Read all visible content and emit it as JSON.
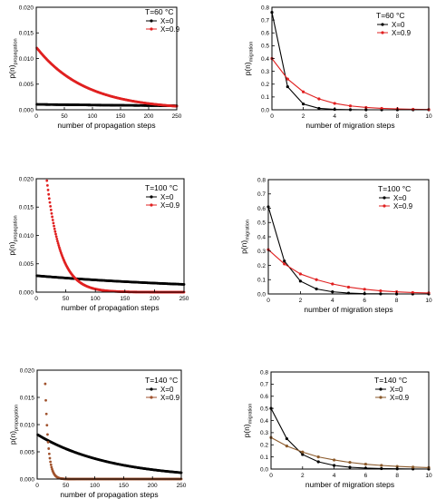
{
  "chart_data": [
    {
      "type": "scatter",
      "title": "",
      "xlabel": "number of propagation steps",
      "ylabel_main": "p(n)",
      "ylabel_sub": "propagation",
      "xlim": [
        0,
        250
      ],
      "ylim": [
        0,
        0.02
      ],
      "xticks": [
        "0",
        "50",
        "100",
        "150",
        "200",
        "250"
      ],
      "yticks": [
        "0.000",
        "0.005",
        "0.010",
        "0.015",
        "0.020"
      ],
      "legend_title": "T=60 °C",
      "legend_position": "top-right",
      "series": [
        {
          "name": "X=0",
          "color": "#000000",
          "model": {
            "kind": "exp",
            "a": 0.00105,
            "k": 0.0012,
            "xmin": 1,
            "xmax": 250
          }
        },
        {
          "name": "X=0.9",
          "color": "#e02020",
          "model": {
            "kind": "exp",
            "a": 0.0122,
            "k": 0.0115,
            "xmin": 1,
            "xmax": 250
          }
        }
      ]
    },
    {
      "type": "line",
      "title": "",
      "xlabel": "number of migration steps",
      "ylabel_main": "p(n)",
      "ylabel_sub": "migration",
      "xlim": [
        0,
        10
      ],
      "ylim": [
        0,
        0.8
      ],
      "xticks": [
        "0",
        "2",
        "4",
        "6",
        "8",
        "10"
      ],
      "yticks": [
        "0.0",
        "0.1",
        "0.2",
        "0.3",
        "0.4",
        "0.5",
        "0.6",
        "0.7",
        "0.8"
      ],
      "legend_title": "T=60 °C",
      "legend_position": "top-right",
      "series": [
        {
          "name": "X=0",
          "color": "#000000",
          "x": [
            0,
            1,
            2,
            3,
            4,
            5,
            6,
            7,
            8,
            9,
            10
          ],
          "values": [
            0.76,
            0.18,
            0.045,
            0.011,
            0.003,
            0.001,
            0,
            0,
            0,
            0,
            0
          ]
        },
        {
          "name": "X=0.9",
          "color": "#e02020",
          "x": [
            0,
            1,
            2,
            3,
            4,
            5,
            6,
            7,
            8,
            9,
            10
          ],
          "values": [
            0.4,
            0.24,
            0.14,
            0.085,
            0.05,
            0.03,
            0.018,
            0.011,
            0.007,
            0.004,
            0.002
          ]
        }
      ]
    },
    {
      "type": "scatter",
      "title": "",
      "xlabel": "number of propagation steps",
      "ylabel_main": "p(n)",
      "ylabel_sub": "propagation",
      "xlim": [
        0,
        250
      ],
      "ylim": [
        0,
        0.02
      ],
      "xticks": [
        "0",
        "50",
        "100",
        "150",
        "200",
        "250"
      ],
      "yticks": [
        "0.000",
        "0.005",
        "0.010",
        "0.015",
        "0.020"
      ],
      "legend_title": "T=100 °C",
      "legend_position": "top-right",
      "series": [
        {
          "name": "X=0",
          "color": "#000000",
          "model": {
            "kind": "exp",
            "a": 0.0029,
            "k": 0.003,
            "xmin": 1,
            "xmax": 250
          }
        },
        {
          "name": "X=0.9",
          "color": "#e02020",
          "model": {
            "kind": "exp",
            "a": 0.043,
            "k": 0.0435,
            "xmin": 18,
            "xmax": 250
          }
        }
      ]
    },
    {
      "type": "line",
      "title": "",
      "xlabel": "number of migration steps",
      "ylabel_main": "p(n)",
      "ylabel_sub": "migration",
      "xlim": [
        0,
        10
      ],
      "ylim": [
        0,
        0.8
      ],
      "xticks": [
        "0",
        "2",
        "4",
        "6",
        "8",
        "10"
      ],
      "yticks": [
        "0.0",
        "0.1",
        "0.2",
        "0.3",
        "0.4",
        "0.5",
        "0.6",
        "0.7",
        "0.8"
      ],
      "legend_title": "T=100 °C",
      "legend_position": "top-right",
      "series": [
        {
          "name": "X=0",
          "color": "#000000",
          "x": [
            0,
            1,
            2,
            3,
            4,
            5,
            6,
            7,
            8,
            9,
            10
          ],
          "values": [
            0.61,
            0.23,
            0.09,
            0.035,
            0.015,
            0.006,
            0.002,
            0.001,
            0,
            0,
            0
          ]
        },
        {
          "name": "X=0.9",
          "color": "#e02020",
          "x": [
            0,
            1,
            2,
            3,
            4,
            5,
            6,
            7,
            8,
            9,
            10
          ],
          "values": [
            0.31,
            0.21,
            0.14,
            0.1,
            0.07,
            0.048,
            0.033,
            0.022,
            0.015,
            0.01,
            0.007
          ]
        }
      ]
    },
    {
      "type": "scatter",
      "title": "",
      "xlabel": "number of propagation steps",
      "ylabel_main": "p(n)",
      "ylabel_sub": "propagation",
      "xlim": [
        0,
        250
      ],
      "ylim": [
        0,
        0.02
      ],
      "xticks": [
        "0",
        "50",
        "100",
        "150",
        "200",
        "250"
      ],
      "yticks": [
        "0.000",
        "0.005",
        "0.010",
        "0.015",
        "0.020"
      ],
      "legend_title": "T=140 °C",
      "legend_position": "top-right",
      "series": [
        {
          "name": "X=0",
          "color": "#000000",
          "model": {
            "kind": "exp",
            "a": 0.0082,
            "k": 0.0078,
            "xmin": 1,
            "xmax": 250
          }
        },
        {
          "name": "X=0.9",
          "color": "#a0522d",
          "model": {
            "kind": "exp",
            "a": 0.25,
            "k": 0.19,
            "xmin": 14,
            "xmax": 250
          }
        }
      ]
    },
    {
      "type": "line",
      "title": "",
      "xlabel": "number of migration steps",
      "ylabel_main": "p(n)",
      "ylabel_sub": "migration",
      "xlim": [
        0,
        10
      ],
      "ylim": [
        0,
        0.8
      ],
      "xticks": [
        "0",
        "2",
        "4",
        "6",
        "8",
        "10"
      ],
      "yticks": [
        "0.0",
        "0.1",
        "0.2",
        "0.3",
        "0.4",
        "0.5",
        "0.6",
        "0.7",
        "0.8"
      ],
      "legend_title": "T=140 °C",
      "legend_position": "top-right",
      "series": [
        {
          "name": "X=0",
          "color": "#000000",
          "x": [
            0,
            1,
            2,
            3,
            4,
            5,
            6,
            7,
            8,
            9,
            10
          ],
          "values": [
            0.5,
            0.25,
            0.12,
            0.06,
            0.03,
            0.015,
            0.008,
            0.004,
            0.002,
            0.001,
            0
          ]
        },
        {
          "name": "X=0.9",
          "color": "#8b5a2b",
          "x": [
            0,
            1,
            2,
            3,
            4,
            5,
            6,
            7,
            8,
            9,
            10
          ],
          "values": [
            0.26,
            0.19,
            0.14,
            0.1,
            0.075,
            0.055,
            0.04,
            0.03,
            0.022,
            0.016,
            0.012
          ]
        }
      ]
    }
  ]
}
